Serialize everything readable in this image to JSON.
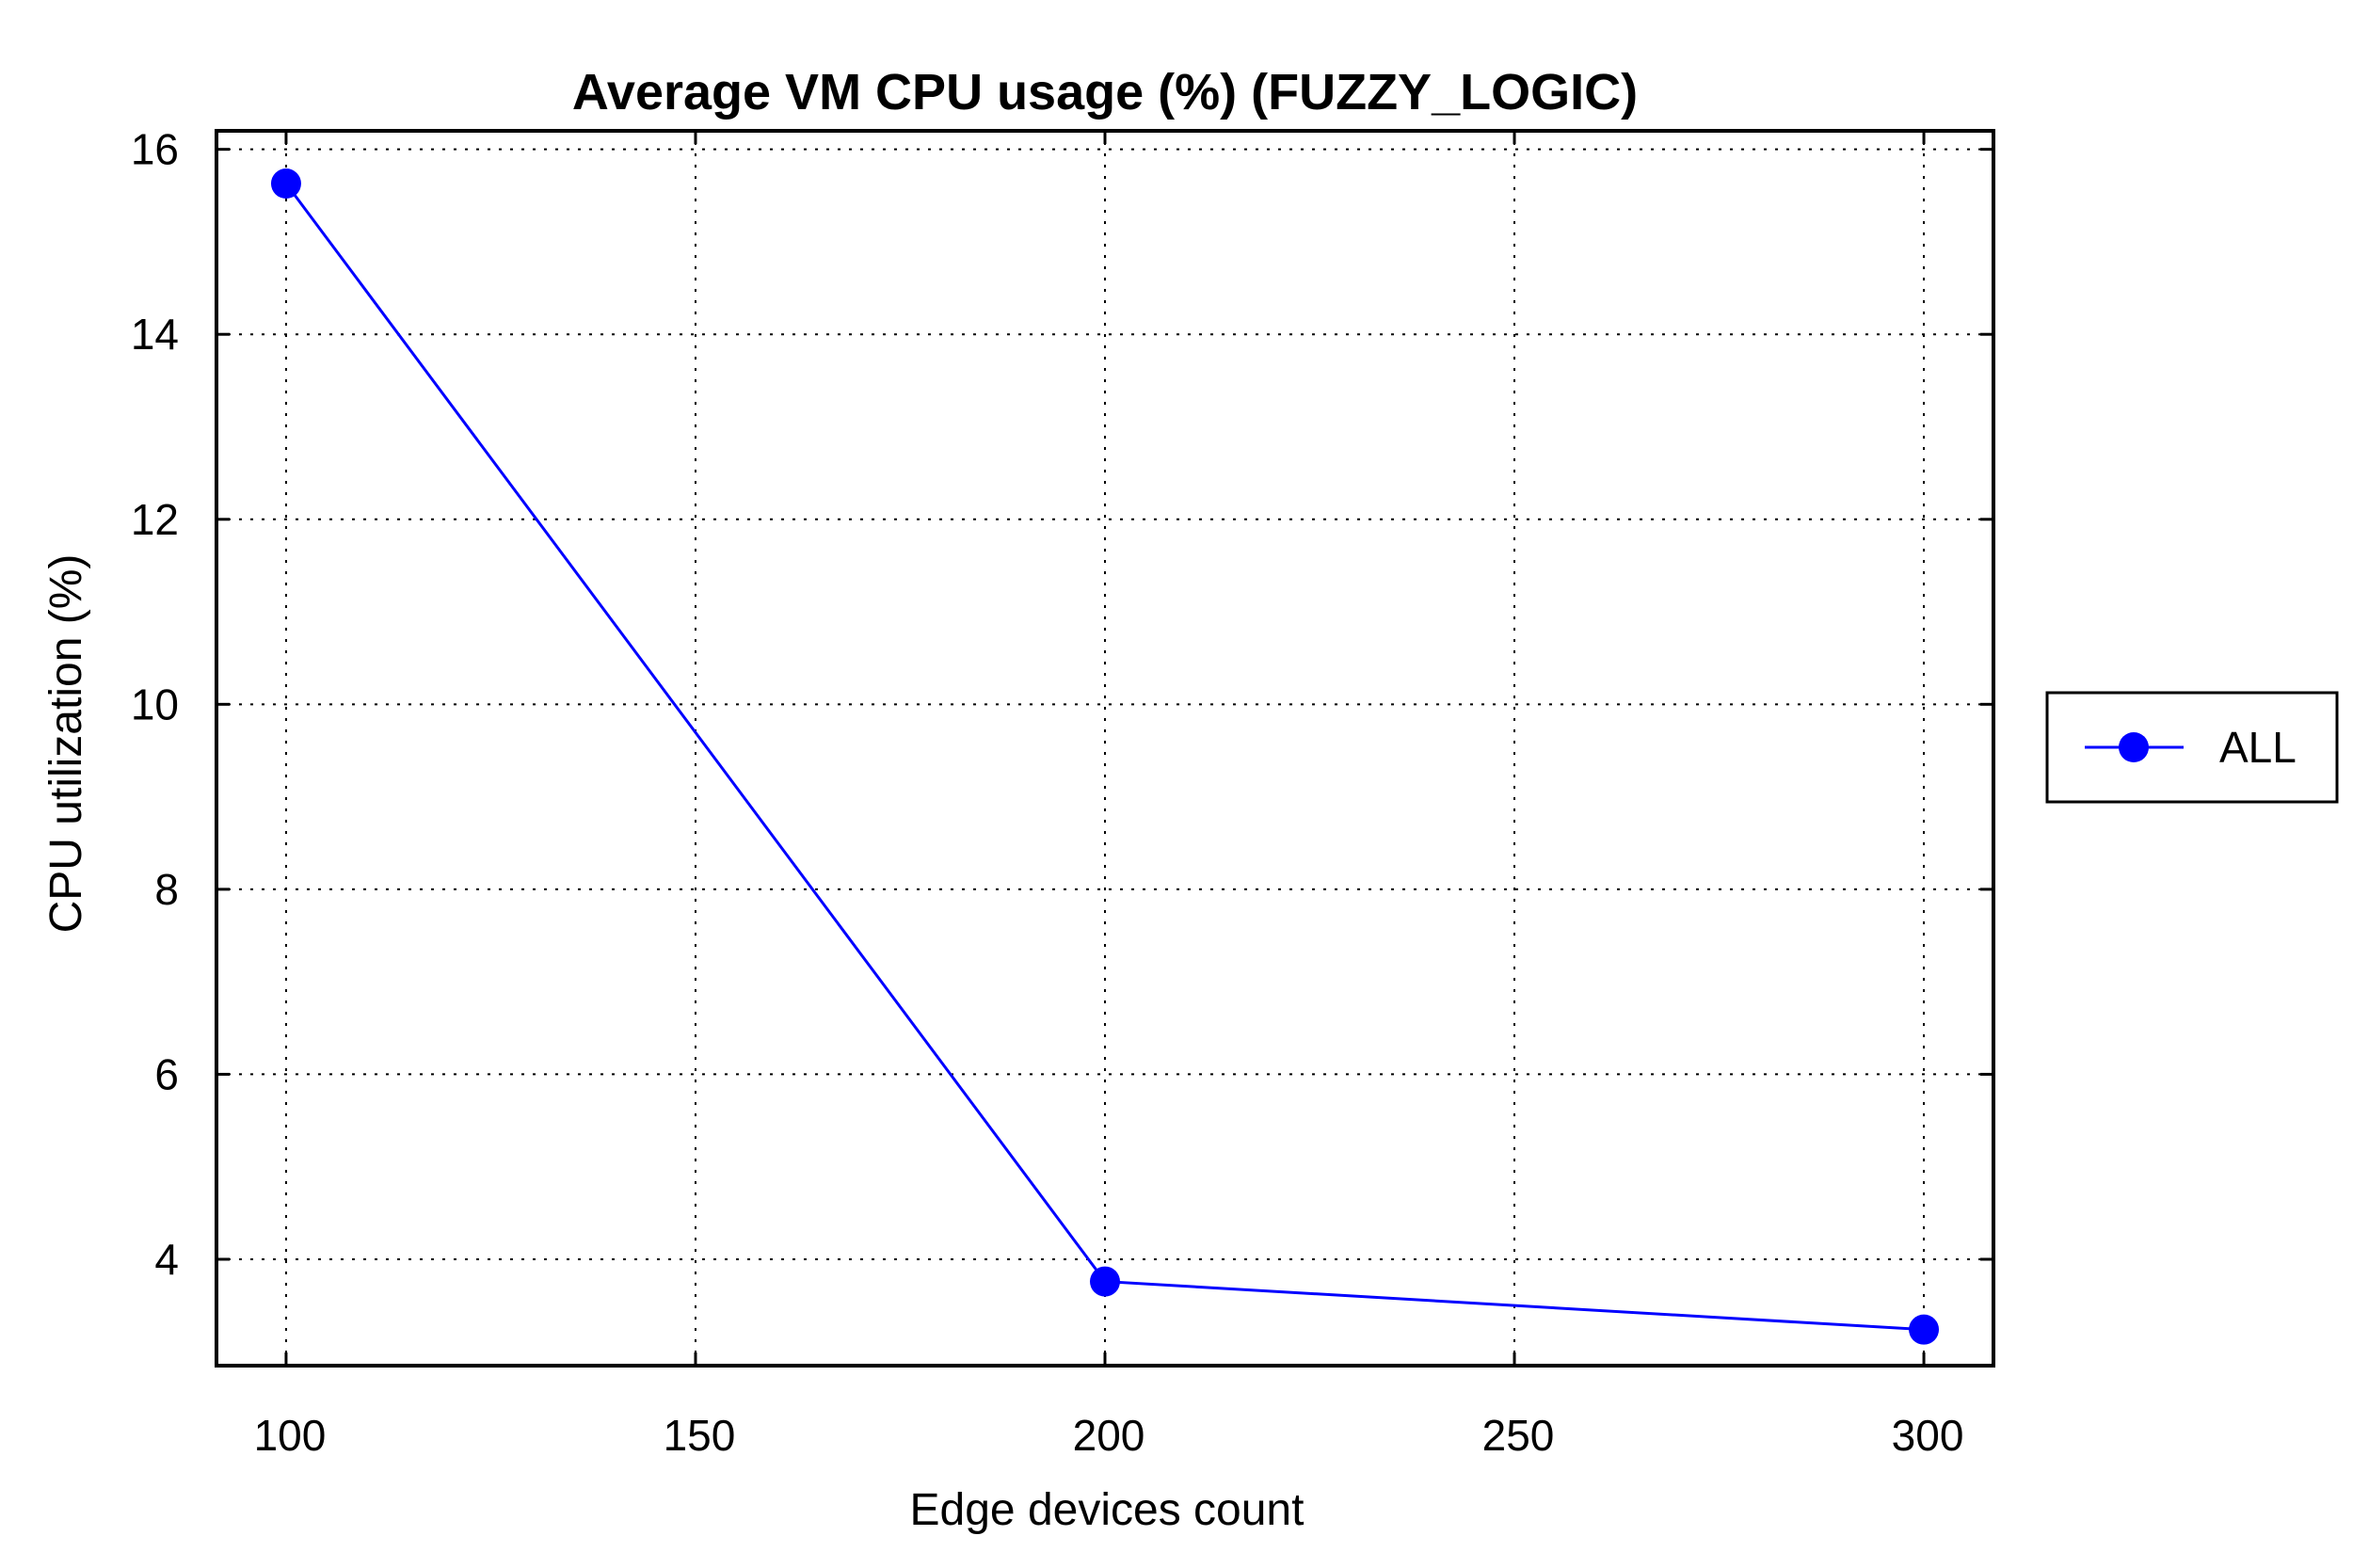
{
  "chart_data": {
    "type": "line",
    "title": "Average VM CPU usage (%) (FUZZY_LOGIC)",
    "xlabel": "Edge devices count",
    "ylabel": "CPU utilization (%)",
    "xlim": [
      91.5,
      308.5
    ],
    "ylim": [
      2.85,
      16.2
    ],
    "xticks": [
      100,
      150,
      200,
      250,
      300
    ],
    "yticks": [
      4,
      6,
      8,
      10,
      12,
      14,
      16
    ],
    "grid": true,
    "legend_position": "right",
    "series": [
      {
        "name": "ALL",
        "color": "#0000ff",
        "marker": "circle",
        "x": [
          100,
          200,
          300
        ],
        "y": [
          15.63,
          3.76,
          3.24
        ]
      }
    ]
  }
}
